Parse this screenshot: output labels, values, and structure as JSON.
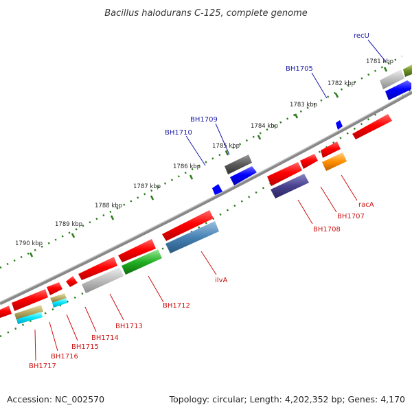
{
  "title": "Bacillus halodurans C-125, complete genome",
  "footer": {
    "accession": "Accession: NC_002570",
    "summary": "Topology: circular; Length: 4,202,352 bp; Genes: 4,170"
  },
  "colors": {
    "backbone": "#888888",
    "tick": "#2e7d1e",
    "label_plus": "#1a1aa8",
    "label_minus": "#cc1111",
    "gene_red": "#ff0000",
    "gene_blue": "#0000ff"
  },
  "scale_labels": [
    "1781 kbp",
    "1782 kbp",
    "1783 kbp",
    "1784 kbp",
    "1785 kbp",
    "1786 kbp",
    "1787 kbp",
    "1788 kbp",
    "1789 kbp",
    "1790 kbp"
  ],
  "gene_labels": {
    "recU": "recU",
    "BH1705": "BH1705",
    "BH1709": "BH1709",
    "BH1710": "BH1710",
    "racA": "racA",
    "BH1707": "BH1707",
    "BH1708": "BH1708",
    "ilvA": "ilvA",
    "BH1712": "BH1712",
    "BH1713": "BH1713",
    "BH1714": "BH1714",
    "BH1715": "BH1715",
    "BH1716": "BH1716",
    "BH1717": "BH1717"
  }
}
